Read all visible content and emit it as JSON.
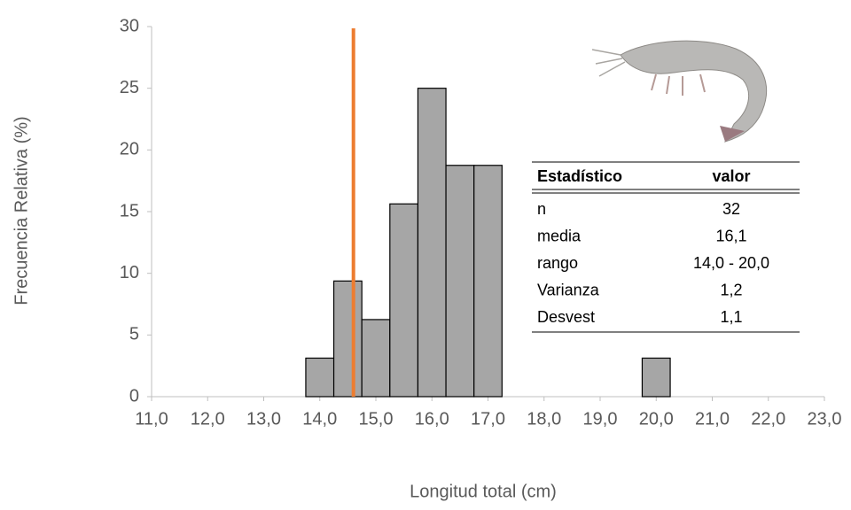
{
  "chart_data": {
    "type": "histogram",
    "x_label": "Longitud total (cm)",
    "y_label": "Frecuencia Relativa (%)",
    "bins": [
      13.75,
      14.25,
      14.75,
      15.25,
      15.75,
      16.25,
      16.75,
      17.25,
      17.75,
      18.25,
      18.75,
      19.25,
      19.75,
      20.25
    ],
    "values": [
      3.125,
      9.375,
      6.25,
      15.625,
      25,
      18.75,
      18.75,
      0,
      0,
      0,
      0,
      0,
      3.125
    ],
    "color": "#a6a6a6",
    "reference_line": {
      "x": 14.6,
      "color": "#ed7d31"
    },
    "xlim": [
      11,
      23
    ],
    "xticks": [
      {
        "value": 11,
        "label": "11,0"
      },
      {
        "value": 12,
        "label": "12,0"
      },
      {
        "value": 13,
        "label": "13,0"
      },
      {
        "value": 14,
        "label": "14,0"
      },
      {
        "value": 15,
        "label": "15,0"
      },
      {
        "value": 16,
        "label": "16,0"
      },
      {
        "value": 17,
        "label": "17,0"
      },
      {
        "value": 18,
        "label": "18,0"
      },
      {
        "value": 19,
        "label": "19,0"
      },
      {
        "value": 20,
        "label": "20,0"
      },
      {
        "value": 21,
        "label": "21,0"
      },
      {
        "value": 22,
        "label": "22,0"
      },
      {
        "value": 23,
        "label": "23,0"
      }
    ],
    "ylim": [
      0,
      30
    ],
    "yticks": [
      0,
      5,
      10,
      15,
      20,
      25,
      30
    ],
    "stats_table": {
      "header": [
        "Estadístico",
        "valor"
      ],
      "rows": [
        [
          "n",
          "32"
        ],
        [
          "media",
          "16,1"
        ],
        [
          "rango",
          "14,0 - 20,0"
        ],
        [
          "Varianza",
          "1,2"
        ],
        [
          "Desvest",
          "1,1"
        ]
      ]
    }
  }
}
